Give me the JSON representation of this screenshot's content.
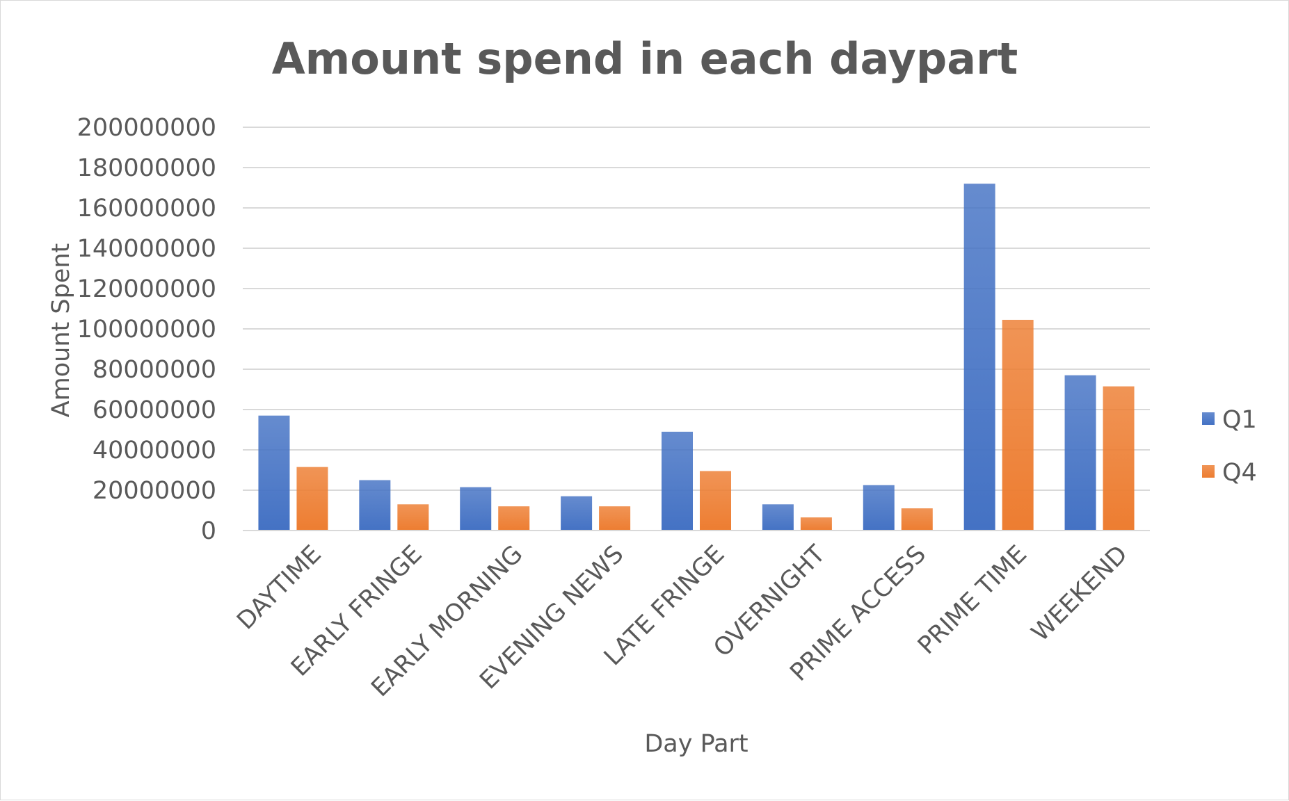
{
  "chart_data": {
    "type": "bar",
    "title": "Amount spend in each daypart",
    "xlabel": "Day Part",
    "ylabel": "Amount Spent",
    "categories": [
      "DAYTIME",
      "EARLY FRINGE",
      "EARLY MORNING",
      "EVENING NEWS",
      "LATE FRINGE",
      "OVERNIGHT",
      "PRIME ACCESS",
      "PRIME TIME",
      "WEEKEND"
    ],
    "series": [
      {
        "name": "Q1",
        "color": "#4472c4",
        "values": [
          57000000,
          25000000,
          21500000,
          17000000,
          49000000,
          13000000,
          22500000,
          172000000,
          77000000
        ]
      },
      {
        "name": "Q4",
        "color": "#ed7d31",
        "values": [
          31500000,
          13000000,
          12000000,
          12000000,
          29500000,
          6500000,
          11000000,
          104500000,
          71500000
        ]
      }
    ],
    "ylim": [
      0,
      200000000
    ],
    "yticks": [
      "0",
      "20000000",
      "40000000",
      "60000000",
      "80000000",
      "100000000",
      "120000000",
      "140000000",
      "160000000",
      "180000000",
      "200000000"
    ],
    "grid": true,
    "legend": "right"
  }
}
